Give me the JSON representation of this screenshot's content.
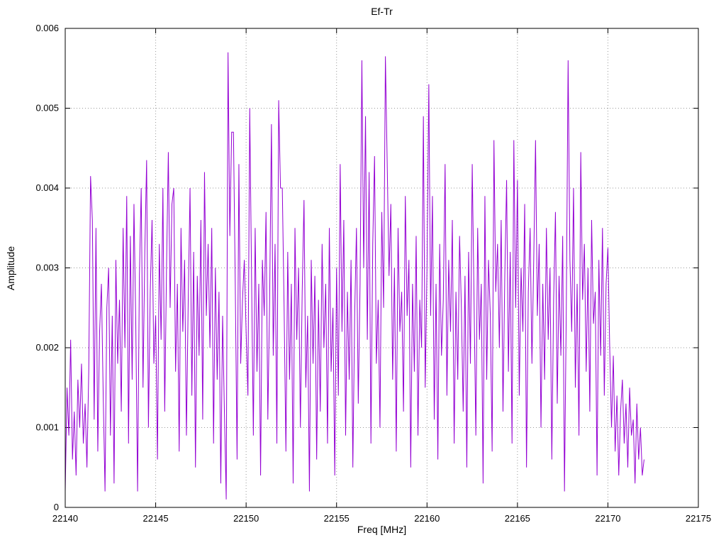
{
  "window": {
    "background": "#ffffff"
  },
  "chart_data": {
    "type": "line",
    "title": "Ef-Tr",
    "xlabel": "Freq [MHz]",
    "ylabel": "Amplitude",
    "xlim": [
      22140,
      22175
    ],
    "ylim": [
      0,
      0.006
    ],
    "grid": true,
    "legend": "none",
    "line_color": "#9400d3",
    "grid_color": "#999999",
    "border_color": "#000000",
    "x_ticks": [
      22140,
      22145,
      22150,
      22155,
      22160,
      22165,
      22170,
      22175
    ],
    "x_tick_labels": [
      "22140",
      "22145",
      "22150",
      "22155",
      "22160",
      "22165",
      "22170",
      "22175"
    ],
    "y_ticks": [
      0,
      0.001,
      0.002,
      0.003,
      0.004,
      0.005,
      0.006
    ],
    "y_tick_labels": [
      "0",
      "0.001",
      "0.002",
      "0.003",
      "0.004",
      "0.005",
      "0.006"
    ],
    "x_start": 22140.0,
    "x_step": 0.1,
    "value_scale": 0.0001,
    "values": [
      2,
      15,
      9,
      21,
      6,
      12,
      4,
      16,
      10,
      18,
      8,
      13,
      5,
      17,
      41.5,
      36,
      11,
      35,
      7,
      22,
      28,
      14,
      2,
      25,
      30,
      9,
      24,
      3,
      31,
      18,
      26,
      12,
      35,
      20,
      39,
      8,
      34,
      16,
      38,
      23,
      2,
      29,
      40,
      15,
      32,
      43.5,
      10,
      27,
      36,
      18,
      24,
      6,
      33,
      21,
      40,
      12,
      30,
      44.5,
      25,
      38,
      40,
      17,
      28,
      7,
      35,
      22,
      31,
      9,
      26,
      40,
      14,
      32,
      5,
      29,
      19,
      36,
      11,
      42,
      24,
      33,
      20,
      35,
      8,
      30,
      16,
      27,
      3,
      24,
      12,
      1,
      57,
      34,
      47,
      47,
      28,
      6,
      43,
      18,
      26,
      31,
      22,
      14,
      50,
      29,
      9,
      35,
      17,
      28,
      4,
      31,
      24,
      37,
      11,
      26,
      48,
      19,
      33,
      8,
      51,
      40,
      40,
      25,
      7,
      32,
      16,
      28,
      3,
      35,
      21,
      30,
      10,
      27,
      38.5,
      15,
      24,
      2,
      31,
      18,
      29,
      6,
      26,
      12,
      33,
      20,
      28,
      8,
      35,
      17,
      25,
      4,
      30,
      14,
      43,
      22,
      36,
      9,
      27,
      16,
      31,
      5,
      24,
      35,
      13,
      28,
      56,
      30,
      49,
      21,
      42,
      8,
      33,
      44,
      18,
      26,
      10,
      37,
      25,
      56.5,
      43,
      29,
      38,
      16,
      30,
      7,
      35,
      22,
      27,
      12,
      39,
      24,
      31,
      5,
      28,
      17,
      34,
      9,
      26,
      20,
      49,
      15,
      30,
      53,
      24,
      39,
      11,
      28,
      6,
      33,
      19,
      26,
      43,
      14,
      31,
      22,
      36,
      8,
      27,
      16,
      34,
      25,
      12,
      29,
      5,
      32,
      18,
      43,
      26,
      9,
      35,
      21,
      28,
      3,
      39,
      16,
      31,
      24,
      7,
      46,
      27,
      33,
      20,
      36,
      12,
      29,
      41,
      17,
      32,
      8,
      46,
      25,
      41,
      14,
      30,
      22,
      38,
      5,
      27,
      35,
      18,
      31,
      46,
      24,
      33,
      10,
      28,
      16,
      35,
      21,
      30,
      6,
      26,
      37,
      13,
      29,
      19,
      34,
      2,
      25,
      56,
      31,
      22,
      40,
      15,
      28,
      9,
      44.5,
      26,
      33,
      17,
      30,
      12,
      36,
      23,
      27,
      4,
      31,
      19,
      35,
      14,
      28,
      32.5,
      20,
      10,
      19,
      7,
      14,
      4,
      12,
      16,
      8,
      13,
      5,
      15,
      9,
      11,
      3,
      13,
      6,
      10,
      4,
      6
    ]
  }
}
